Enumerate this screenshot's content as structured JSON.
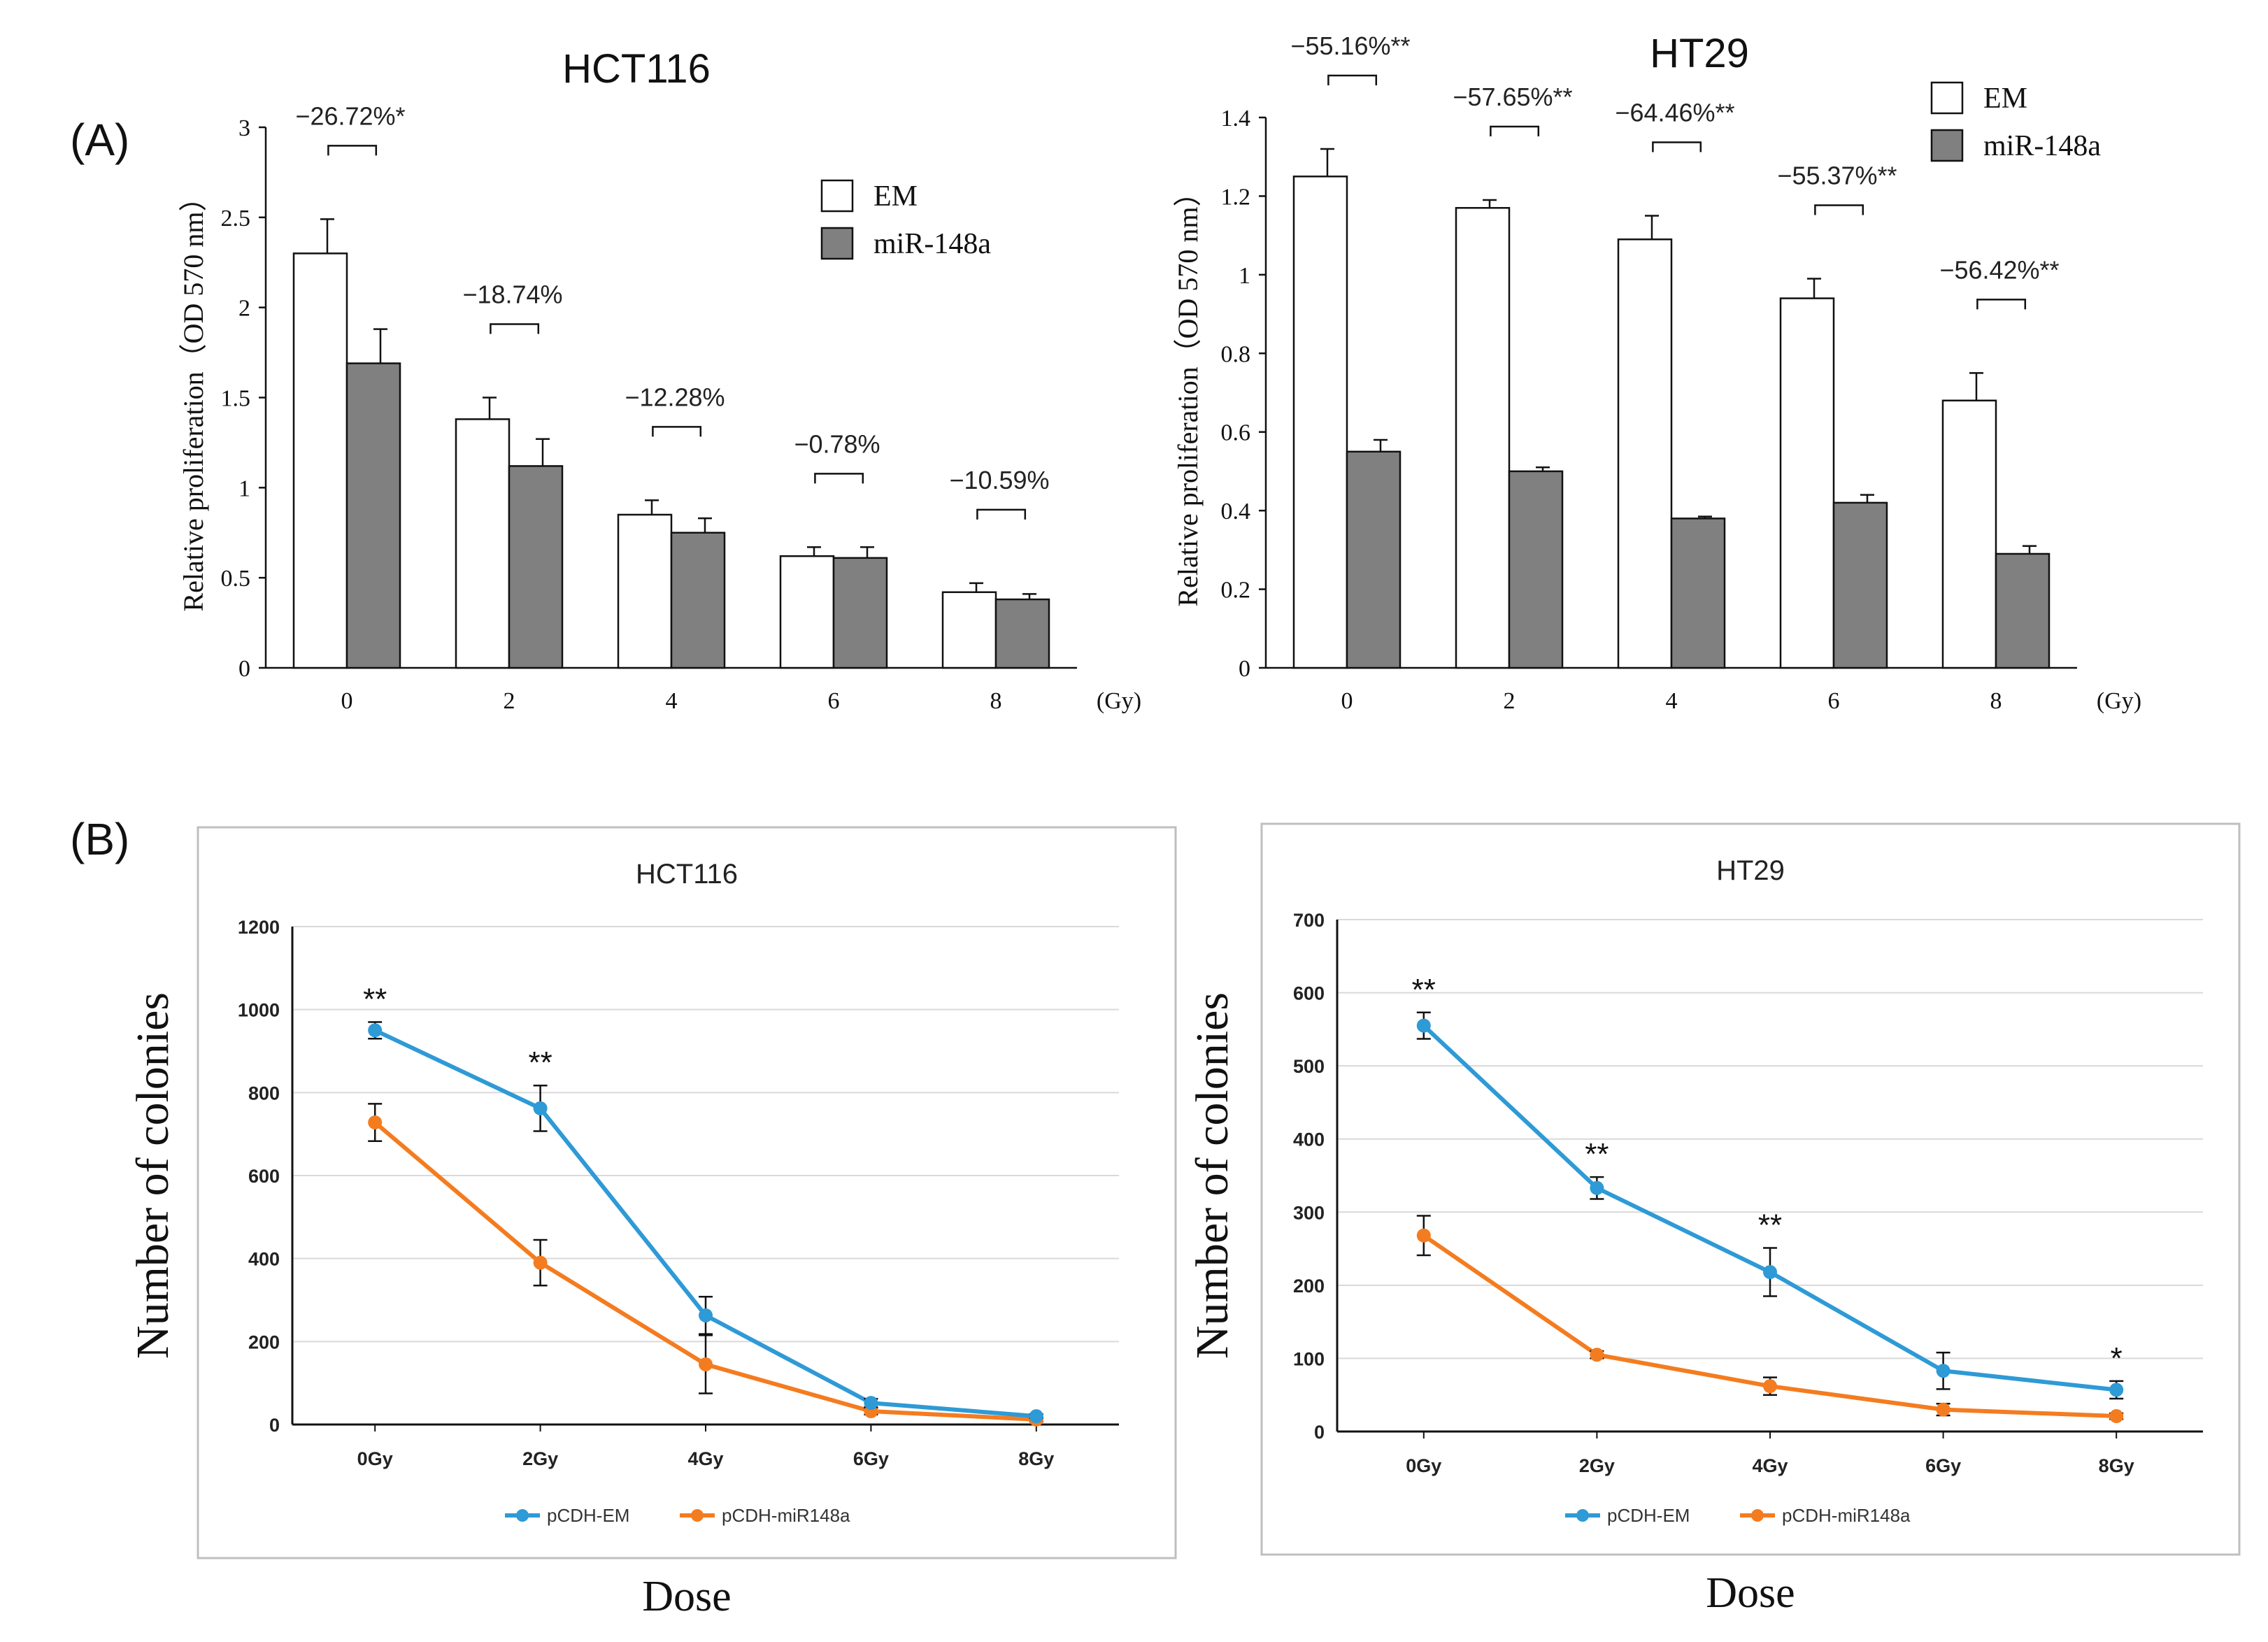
{
  "panel_labels": {
    "a": "(A)",
    "b": "(B)"
  },
  "colors": {
    "em_bar": "#ffffff",
    "mir_bar": "#808080",
    "em_line": "#2e9ad6",
    "mir_line": "#f47c20",
    "grid": "#d9d9d9",
    "frame": "#bfbfbf"
  },
  "chart_data": [
    {
      "type": "bar",
      "title": "HCT116",
      "ylabel": "Relative proliferation（OD 570 nm）",
      "xlabel": "",
      "unit": "(Gy)",
      "categories": [
        "0",
        "2",
        "4",
        "6",
        "8"
      ],
      "ylim": [
        0,
        3
      ],
      "yticks": [
        "0",
        "0.5",
        "1",
        "1.5",
        "2",
        "2.5",
        "3"
      ],
      "series": [
        {
          "name": "EM",
          "values": [
            2.3,
            1.38,
            0.85,
            0.62,
            0.42
          ],
          "errors": [
            0.19,
            0.12,
            0.08,
            0.05,
            0.05
          ]
        },
        {
          "name": "miR-148a",
          "values": [
            1.69,
            1.12,
            0.75,
            0.61,
            0.38
          ],
          "errors": [
            0.19,
            0.15,
            0.08,
            0.06,
            0.03
          ]
        }
      ],
      "annotations": [
        "−26.72%*",
        "−18.74%",
        "−12.28%",
        "−0.78%",
        "−10.59%"
      ],
      "legend": [
        "EM",
        "miR-148a"
      ]
    },
    {
      "type": "bar",
      "title": "HT29",
      "ylabel": "Relative proliferation（OD 570 nm）",
      "xlabel": "",
      "unit": "(Gy)",
      "categories": [
        "0",
        "2",
        "4",
        "6",
        "8"
      ],
      "ylim": [
        0,
        1.4
      ],
      "yticks": [
        "0",
        "0.2",
        "0.4",
        "0.6",
        "0.8",
        "1",
        "1.2",
        "1.4"
      ],
      "series": [
        {
          "name": "EM",
          "values": [
            1.25,
            1.17,
            1.09,
            0.94,
            0.68
          ],
          "errors": [
            0.07,
            0.02,
            0.06,
            0.05,
            0.07
          ]
        },
        {
          "name": "miR-148a",
          "values": [
            0.55,
            0.5,
            0.38,
            0.42,
            0.29
          ],
          "errors": [
            0.03,
            0.01,
            0.005,
            0.02,
            0.02
          ]
        }
      ],
      "annotations": [
        "−55.16%**",
        "−57.65%**",
        "−64.46%**",
        "−55.37%**",
        "−56.42%**"
      ],
      "legend": [
        "EM",
        "miR-148a"
      ]
    },
    {
      "type": "line",
      "title": "HCT116",
      "xlabel": "Dose",
      "ylabel": "Number of colonies",
      "categories": [
        "0Gy",
        "2Gy",
        "4Gy",
        "6Gy",
        "8Gy"
      ],
      "ylim": [
        0,
        1200
      ],
      "yticks": [
        "0",
        "200",
        "400",
        "600",
        "800",
        "1000",
        "1200"
      ],
      "series": [
        {
          "name": "pCDH-EM",
          "values": [
            950,
            762,
            263,
            52,
            20
          ],
          "errors": [
            20,
            55,
            45,
            10,
            5
          ]
        },
        {
          "name": "pCDH-miR148a",
          "values": [
            728,
            390,
            145,
            32,
            12
          ],
          "errors": [
            45,
            55,
            70,
            8,
            5
          ]
        }
      ],
      "stars": [
        "**",
        "**",
        "",
        "",
        ""
      ],
      "legend": [
        "pCDH-EM",
        "pCDH-miR148a"
      ]
    },
    {
      "type": "line",
      "title": "HT29",
      "xlabel": "Dose",
      "ylabel": "Number of colonies",
      "categories": [
        "0Gy",
        "2Gy",
        "4Gy",
        "6Gy",
        "8Gy"
      ],
      "ylim": [
        0,
        700
      ],
      "yticks": [
        "0",
        "100",
        "200",
        "300",
        "400",
        "500",
        "600",
        "700"
      ],
      "series": [
        {
          "name": "pCDH-EM",
          "values": [
            555,
            333,
            218,
            83,
            57
          ],
          "errors": [
            18,
            15,
            33,
            25,
            12
          ]
        },
        {
          "name": "pCDH-miR148a",
          "values": [
            268,
            105,
            62,
            30,
            21
          ],
          "errors": [
            27,
            5,
            12,
            8,
            4
          ]
        }
      ],
      "stars": [
        "**",
        "**",
        "**",
        "",
        "*"
      ],
      "legend": [
        "pCDH-EM",
        "pCDH-miR148a"
      ]
    }
  ]
}
